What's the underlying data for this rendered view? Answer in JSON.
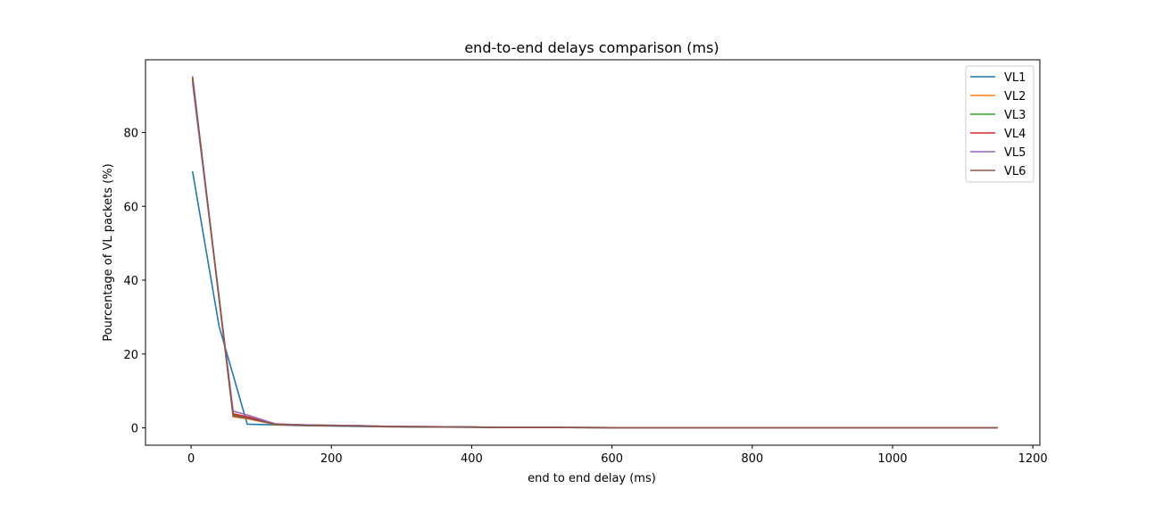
{
  "chart_data": {
    "type": "line",
    "title": "end-to-end delays comparison (ms)",
    "xlabel": "end to end delay (ms)",
    "ylabel": "Pourcentage of VL packets (%)",
    "xlim": [
      -65,
      1210
    ],
    "ylim": [
      -4.7,
      99.7
    ],
    "xticks": [
      0,
      200,
      400,
      600,
      800,
      1000,
      1200
    ],
    "yticks": [
      0,
      20,
      40,
      60,
      80
    ],
    "grid": false,
    "legend_position": "top-right",
    "series": [
      {
        "name": "VL1",
        "color": "#1f77b4",
        "x": [
          2,
          40,
          80,
          120,
          160,
          200,
          240,
          280,
          320,
          360,
          400,
          440,
          500,
          600,
          700,
          800,
          900,
          1000,
          1100,
          1150
        ],
        "y": [
          69.5,
          27.5,
          1.0,
          0.8,
          0.6,
          0.5,
          0.4,
          0.3,
          0.2,
          0.2,
          0.15,
          0.1,
          0.1,
          0.05,
          0.05,
          0.05,
          0.05,
          0.05,
          0.05,
          0.05
        ]
      },
      {
        "name": "VL2",
        "color": "#ff7f0e",
        "x": [
          2,
          60,
          80,
          120,
          160,
          200,
          240,
          280,
          320,
          360,
          400,
          440,
          500,
          600,
          700,
          800,
          900,
          1000,
          1100,
          1150
        ],
        "y": [
          95.0,
          3.0,
          2.5,
          0.9,
          0.7,
          0.6,
          0.5,
          0.3,
          0.3,
          0.25,
          0.2,
          0.1,
          0.1,
          0.05,
          0.05,
          0.05,
          0.05,
          0.05,
          0.05,
          0.05
        ]
      },
      {
        "name": "VL3",
        "color": "#2ca02c",
        "x": [
          2,
          60,
          80,
          120,
          160,
          200,
          240,
          280,
          320,
          360,
          400,
          440,
          500,
          600,
          700,
          800,
          900,
          1000,
          1100,
          1150
        ],
        "y": [
          94.8,
          3.5,
          2.7,
          1.0,
          0.8,
          0.6,
          0.5,
          0.4,
          0.3,
          0.25,
          0.2,
          0.1,
          0.1,
          0.05,
          0.05,
          0.05,
          0.05,
          0.05,
          0.05,
          0.05
        ]
      },
      {
        "name": "VL4",
        "color": "#d62728",
        "x": [
          2,
          60,
          80,
          120,
          160,
          200,
          240,
          280,
          320,
          360,
          400,
          440,
          500,
          600,
          700,
          800,
          900,
          1000,
          1100,
          1150
        ],
        "y": [
          94.5,
          3.8,
          3.0,
          1.0,
          0.8,
          0.7,
          0.6,
          0.4,
          0.35,
          0.3,
          0.25,
          0.1,
          0.1,
          0.05,
          0.05,
          0.05,
          0.05,
          0.05,
          0.05,
          0.05
        ]
      },
      {
        "name": "VL5",
        "color": "#9467bd",
        "x": [
          2,
          60,
          80,
          120,
          160,
          200,
          240,
          280,
          320,
          360,
          400,
          440,
          500,
          600,
          700,
          800,
          900,
          1000,
          1100,
          1150
        ],
        "y": [
          93.5,
          4.5,
          3.5,
          1.1,
          0.8,
          0.7,
          0.6,
          0.4,
          0.35,
          0.3,
          0.25,
          0.1,
          0.1,
          0.05,
          0.05,
          0.05,
          0.05,
          0.05,
          0.05,
          0.05
        ]
      },
      {
        "name": "VL6",
        "color": "#8c564b",
        "x": [
          2,
          60,
          80,
          120,
          160,
          200,
          240,
          280,
          320,
          360,
          400,
          440,
          500,
          600,
          700,
          800,
          900,
          1000,
          1100,
          1150
        ],
        "y": [
          95.2,
          3.2,
          2.6,
          1.0,
          0.7,
          0.6,
          0.5,
          0.35,
          0.3,
          0.25,
          0.2,
          0.1,
          0.1,
          0.05,
          0.05,
          0.05,
          0.05,
          0.05,
          0.05,
          0.05
        ]
      }
    ]
  }
}
